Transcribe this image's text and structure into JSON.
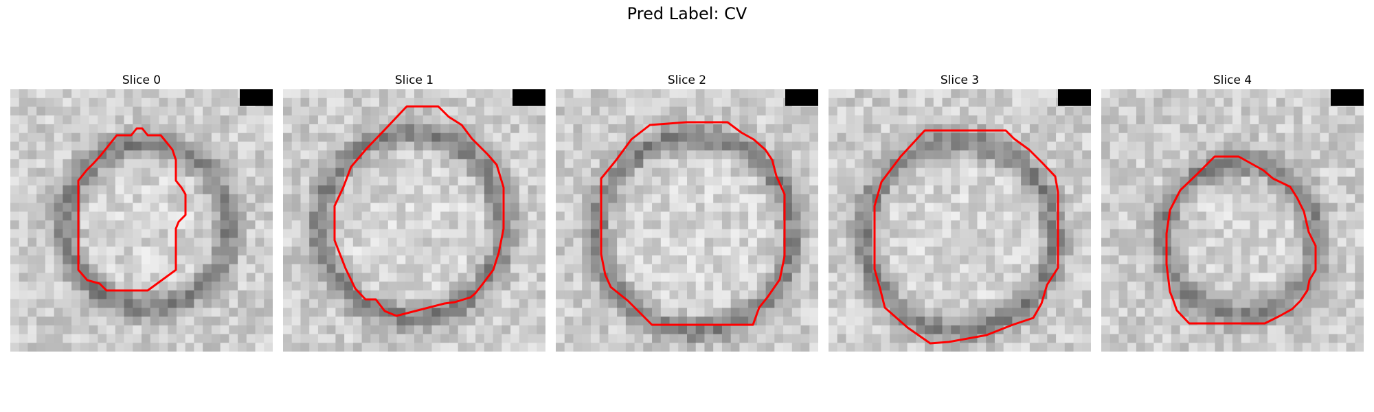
{
  "figure": {
    "title": "Pred Label: CV"
  },
  "slices": [
    {
      "title": "Slice 0"
    },
    {
      "title": "Slice 1"
    },
    {
      "title": "Slice 2"
    },
    {
      "title": "Slice 3"
    },
    {
      "title": "Slice 4"
    }
  ],
  "colors": {
    "contour": "#ff0000",
    "scale_bar": "#000000"
  }
}
